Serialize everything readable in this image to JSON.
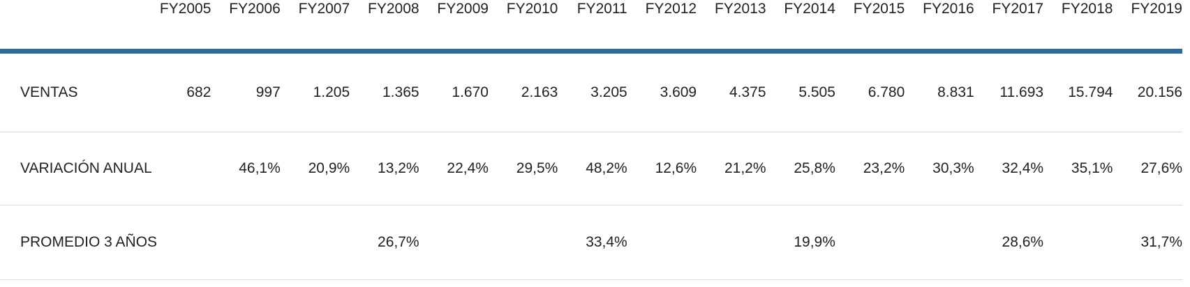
{
  "table": {
    "columns": [
      "FY2005",
      "FY2006",
      "FY2007",
      "FY2008",
      "FY2009",
      "FY2010",
      "FY2011",
      "FY2012",
      "FY2013",
      "FY2014",
      "FY2015",
      "FY2016",
      "FY2017",
      "FY2018",
      "FY2019"
    ],
    "rows": [
      {
        "label": "VENTAS",
        "values": [
          "682",
          "997",
          "1.205",
          "1.365",
          "1.670",
          "2.163",
          "3.205",
          "3.609",
          "4.375",
          "5.505",
          "6.780",
          "8.831",
          "11.693",
          "15.794",
          "20.156"
        ]
      },
      {
        "label": "VARIACIÓN ANUAL",
        "values": [
          "",
          "46,1%",
          "20,9%",
          "13,2%",
          "22,4%",
          "29,5%",
          "48,2%",
          "12,6%",
          "21,2%",
          "25,8%",
          "23,2%",
          "30,3%",
          "32,4%",
          "35,1%",
          "27,6%"
        ]
      },
      {
        "label": "PROMEDIO 3 AÑOS",
        "values": [
          "",
          "",
          "",
          "26,7%",
          "",
          "",
          "33,4%",
          "",
          "",
          "19,9%",
          "",
          "",
          "28,6%",
          "",
          "31,7%"
        ]
      }
    ]
  },
  "colors": {
    "header_rule": "#2c6b9a",
    "row_divider": "#d9d9d9",
    "text": "#212121",
    "background": "#ffffff"
  },
  "chart_data": {
    "type": "table",
    "title": "",
    "categories": [
      "FY2005",
      "FY2006",
      "FY2007",
      "FY2008",
      "FY2009",
      "FY2010",
      "FY2011",
      "FY2012",
      "FY2013",
      "FY2014",
      "FY2015",
      "FY2016",
      "FY2017",
      "FY2018",
      "FY2019"
    ],
    "series": [
      {
        "name": "VENTAS",
        "unit": "",
        "values": [
          682,
          997,
          1205,
          1365,
          1670,
          2163,
          3205,
          3609,
          4375,
          5505,
          6780,
          8831,
          11693,
          15794,
          20156
        ]
      },
      {
        "name": "VARIACIÓN ANUAL",
        "unit": "%",
        "values": [
          null,
          46.1,
          20.9,
          13.2,
          22.4,
          29.5,
          48.2,
          12.6,
          21.2,
          25.8,
          23.2,
          30.3,
          32.4,
          35.1,
          27.6
        ]
      },
      {
        "name": "PROMEDIO 3 AÑOS",
        "unit": "%",
        "values": [
          null,
          null,
          null,
          26.7,
          null,
          null,
          33.4,
          null,
          null,
          19.9,
          null,
          null,
          28.6,
          null,
          31.7
        ]
      }
    ],
    "layout": {
      "number_format": "es-ES (dot thousands, comma decimals)",
      "grid": "horizontal dividers only",
      "header_rule_color": "#2c6b9a"
    }
  }
}
